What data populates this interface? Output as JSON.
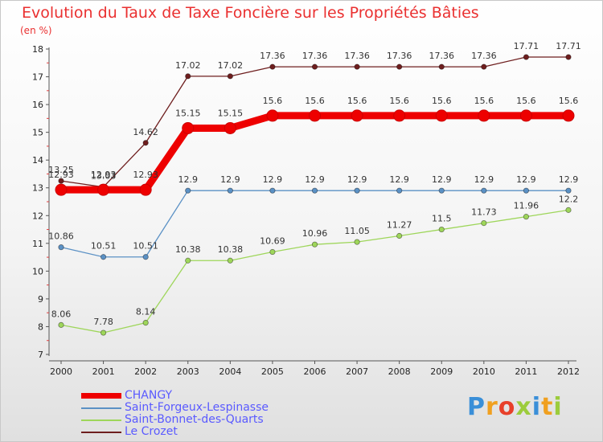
{
  "chart_data": {
    "type": "line",
    "title": "Evolution du Taux de Taxe Foncière sur les Propriétés Bâties",
    "ylabel": "(en %)",
    "xlabel": "",
    "categories": [
      "2000",
      "2001",
      "2002",
      "2003",
      "2004",
      "2005",
      "2006",
      "2007",
      "2008",
      "2009",
      "2010",
      "2011",
      "2012"
    ],
    "ylim": [
      7,
      18
    ],
    "yticks": [
      "7",
      "8",
      "9",
      "10",
      "11",
      "12",
      "13",
      "14",
      "15",
      "16",
      "17",
      "18"
    ],
    "series": [
      {
        "name": "CHANGY",
        "color": "#ee0000",
        "values": [
          12.93,
          12.93,
          12.93,
          15.15,
          15.15,
          15.6,
          15.6,
          15.6,
          15.6,
          15.6,
          15.6,
          15.6,
          15.6
        ],
        "labels": [
          "12.93",
          "12.93",
          "12.93",
          "15.15",
          "15.15",
          "15.6",
          "15.6",
          "15.6",
          "15.6",
          "15.6",
          "15.6",
          "15.6",
          "15.6"
        ]
      },
      {
        "name": "Saint-Forgeux-Lespinasse",
        "color": "#5b91c5",
        "values": [
          10.86,
          10.51,
          10.51,
          12.9,
          12.9,
          12.9,
          12.9,
          12.9,
          12.9,
          12.9,
          12.9,
          12.9,
          12.9
        ],
        "labels": [
          "10.86",
          "10.51",
          "10.51",
          "12.9",
          "12.9",
          "12.9",
          "12.9",
          "12.9",
          "12.9",
          "12.9",
          "12.9",
          "12.9",
          "12.9"
        ]
      },
      {
        "name": "Saint-Bonnet-des-Quarts",
        "color": "#9ed65a",
        "values": [
          8.06,
          7.78,
          8.14,
          10.38,
          10.38,
          10.69,
          10.96,
          11.05,
          11.27,
          11.5,
          11.73,
          11.96,
          12.2
        ],
        "labels": [
          "8.06",
          "7.78",
          "8.14",
          "10.38",
          "10.38",
          "10.69",
          "10.96",
          "11.05",
          "11.27",
          "11.5",
          "11.73",
          "11.96",
          "12.2"
        ]
      },
      {
        "name": "Le Crozet",
        "color": "#6e1e1e",
        "values": [
          13.25,
          13.03,
          14.62,
          17.02,
          17.02,
          17.36,
          17.36,
          17.36,
          17.36,
          17.36,
          17.36,
          17.71,
          17.71
        ],
        "labels": [
          "13.25",
          "13.03",
          "14.62",
          "17.02",
          "17.02",
          "17.36",
          "17.36",
          "17.36",
          "17.36",
          "17.36",
          "17.36",
          "17.71",
          "17.71"
        ]
      }
    ],
    "grid": false,
    "legend": "bottom-left"
  },
  "logo": {
    "letters": [
      "P",
      "r",
      "o",
      "x",
      "i",
      "t",
      "i"
    ],
    "colors": [
      "#3a8fd8",
      "#f0a020",
      "#e8402a",
      "#9ccc3c",
      "#3a8fd8",
      "#f0a020",
      "#9ccc3c"
    ]
  }
}
